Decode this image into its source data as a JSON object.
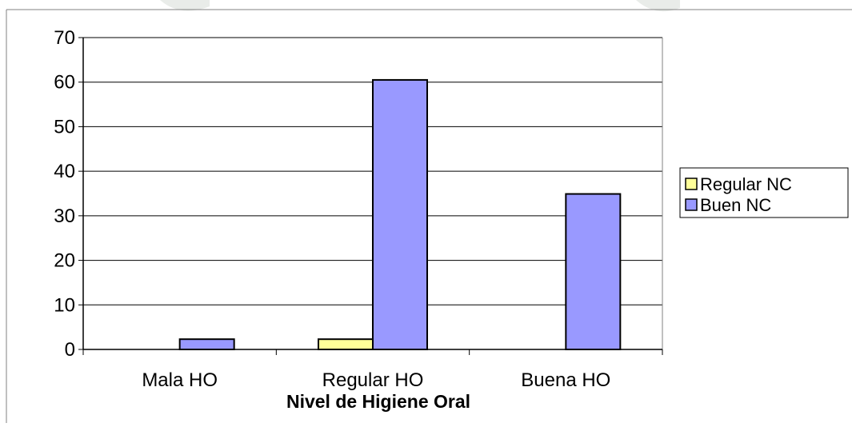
{
  "chart_data": {
    "type": "bar",
    "title": "",
    "xlabel": "Nivel de Higiene Oral",
    "ylabel": "",
    "categories": [
      "Mala HO",
      "Regular HO",
      "Buena HO"
    ],
    "ylim": [
      0,
      70
    ],
    "yticks": [
      0,
      10,
      20,
      30,
      40,
      50,
      60,
      70
    ],
    "grid": true,
    "legend_position": "right",
    "series": [
      {
        "name": "Regular NC",
        "values": [
          0,
          2.3,
          0
        ],
        "color": "#ffff99"
      },
      {
        "name": "Buen NC",
        "values": [
          2.3,
          60.5,
          34.9
        ],
        "color": "#9999ff"
      }
    ]
  }
}
